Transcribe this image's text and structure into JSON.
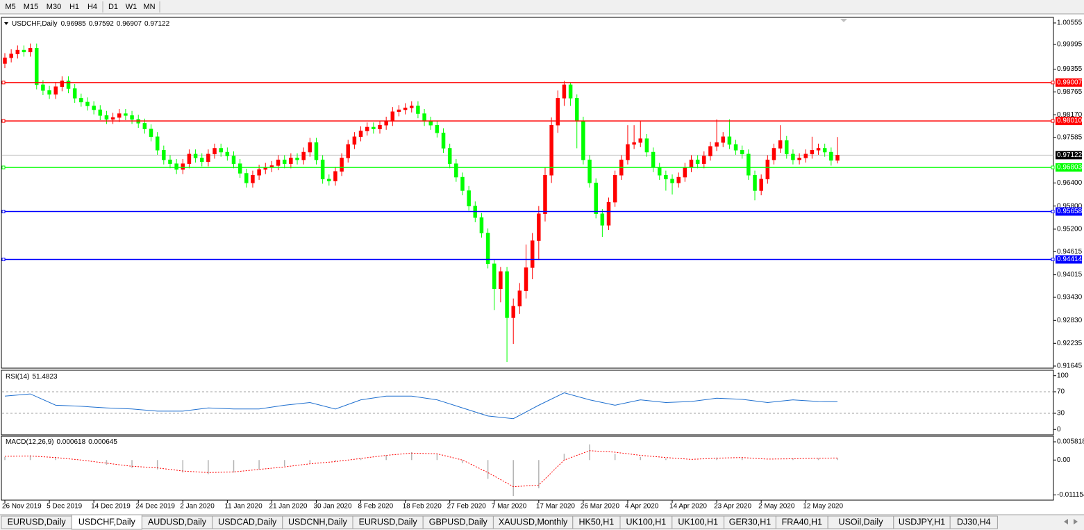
{
  "toolbar": {
    "timeframes": [
      "M5",
      "M15",
      "M30",
      "H1",
      "H4",
      "D1",
      "W1",
      "MN"
    ]
  },
  "chart_data": [
    {
      "type": "candlestick",
      "title": "USDCHF,Daily",
      "up_color": "#ff0000",
      "down_color": "#00ff00",
      "categories": [
        "26 Nov 2019",
        null,
        null,
        null,
        null,
        null,
        null,
        "5 Dec 2019",
        null,
        null,
        null,
        null,
        null,
        null,
        "14 Dec 2019",
        null,
        null,
        null,
        null,
        null,
        null,
        "24 Dec 2019",
        null,
        null,
        null,
        null,
        null,
        null,
        "2 Jan 2020",
        null,
        null,
        null,
        null,
        null,
        null,
        "11 Jan 2020",
        null,
        null,
        null,
        null,
        null,
        null,
        "21 Jan 2020",
        null,
        null,
        null,
        null,
        null,
        null,
        "30 Jan 2020",
        null,
        null,
        null,
        null,
        null,
        null,
        "8 Feb 2020",
        null,
        null,
        null,
        null,
        null,
        null,
        "18 Feb 2020",
        null,
        null,
        null,
        null,
        null,
        null,
        "27 Feb 2020",
        null,
        null,
        null,
        null,
        null,
        null,
        "7 Mar 2020",
        null,
        null,
        null,
        null,
        null,
        null,
        "17 Mar 2020",
        null,
        null,
        null,
        null,
        null,
        null,
        "26 Mar 2020",
        null,
        null,
        null,
        null,
        null,
        null,
        "4 Apr 2020",
        null,
        null,
        null,
        null,
        null,
        null,
        "14 Apr 2020",
        null,
        null,
        null,
        null,
        null,
        null,
        "23 Apr 2020",
        null,
        null,
        null,
        null,
        null,
        null,
        "2 May 2020",
        null,
        null,
        null,
        null,
        null,
        null,
        "12 May 2020",
        null,
        null,
        null,
        null,
        null
      ],
      "open": [
        0.995,
        0.9965,
        0.9975,
        0.9985,
        0.998,
        0.999,
        0.9895,
        0.988,
        0.987,
        0.989,
        0.9905,
        0.9885,
        0.986,
        0.985,
        0.984,
        0.983,
        0.9815,
        0.9805,
        0.981,
        0.982,
        0.9815,
        0.9805,
        0.9795,
        0.978,
        0.976,
        0.9725,
        0.97,
        0.969,
        0.9675,
        0.969,
        0.9715,
        0.9705,
        0.9695,
        0.9715,
        0.973,
        0.972,
        0.971,
        0.969,
        0.9665,
        0.964,
        0.966,
        0.9675,
        0.968,
        0.9685,
        0.97,
        0.969,
        0.9705,
        0.97,
        0.972,
        0.9745,
        0.97,
        0.965,
        0.9645,
        0.967,
        0.9705,
        0.974,
        0.976,
        0.9775,
        0.9785,
        0.978,
        0.979,
        0.98,
        0.9825,
        0.983,
        0.9835,
        0.984,
        0.982,
        0.98,
        0.979,
        0.977,
        0.973,
        0.969,
        0.9655,
        0.962,
        0.958,
        0.955,
        0.951,
        0.943,
        0.9365,
        0.941,
        0.929,
        0.932,
        0.936,
        0.942,
        0.949,
        0.956,
        0.966,
        0.979,
        0.986,
        0.9895,
        0.986,
        0.98,
        0.97,
        0.964,
        0.956,
        0.953,
        0.959,
        0.966,
        0.97,
        0.974,
        0.9745,
        0.9755,
        0.972,
        0.968,
        0.966,
        0.965,
        0.964,
        0.9655,
        0.968,
        0.97,
        0.969,
        0.971,
        0.9735,
        0.9745,
        0.976,
        0.974,
        0.9725,
        0.9715,
        0.966,
        0.962,
        0.965,
        0.97,
        0.973,
        0.975,
        0.9715,
        0.97,
        0.9705,
        0.9715,
        0.9725,
        0.973,
        0.972,
        0.96985
      ],
      "high": [
        0.9977,
        0.9987,
        0.9997,
        0.9997,
        1.0002,
        1.0002,
        0.9907,
        0.9892,
        0.9902,
        0.9917,
        0.9917,
        0.9897,
        0.9872,
        0.9862,
        0.9852,
        0.9842,
        0.9827,
        0.9822,
        0.9832,
        0.9832,
        0.9827,
        0.9817,
        0.9807,
        0.9792,
        0.9772,
        0.9737,
        0.9712,
        0.9702,
        0.9702,
        0.9727,
        0.9727,
        0.9717,
        0.9727,
        0.9742,
        0.9742,
        0.9732,
        0.9722,
        0.9702,
        0.9677,
        0.9672,
        0.9687,
        0.9692,
        0.9697,
        0.9712,
        0.9712,
        0.9717,
        0.9717,
        0.9732,
        0.9757,
        0.9757,
        0.9712,
        0.9662,
        0.9682,
        0.9717,
        0.9752,
        0.9772,
        0.9787,
        0.9797,
        0.9797,
        0.9802,
        0.9812,
        0.9837,
        0.9842,
        0.9847,
        0.9852,
        0.9852,
        0.9832,
        0.9812,
        0.9802,
        0.9782,
        0.9742,
        0.9702,
        0.9667,
        0.9632,
        0.9592,
        0.9562,
        0.9522,
        0.9442,
        0.9422,
        0.9422,
        0.934,
        0.938,
        0.948,
        0.951,
        0.958,
        0.968,
        0.981,
        0.988,
        0.9905,
        0.99,
        0.987,
        0.9812,
        0.9712,
        0.9652,
        0.9572,
        0.9602,
        0.9672,
        0.9712,
        0.979,
        0.979,
        0.98,
        0.9767,
        0.9732,
        0.9692,
        0.9672,
        0.9662,
        0.9667,
        0.9692,
        0.9712,
        0.9712,
        0.9722,
        0.9747,
        0.9805,
        0.9772,
        0.9805,
        0.9752,
        0.9737,
        0.9727,
        0.9672,
        0.9662,
        0.9712,
        0.9742,
        0.979,
        0.9762,
        0.9727,
        0.9717,
        0.9727,
        0.976,
        0.9742,
        0.9742,
        0.9732,
        0.97592
      ],
      "low": [
        0.9938,
        0.9953,
        0.9963,
        0.9968,
        0.9968,
        0.9883,
        0.9868,
        0.9858,
        0.9858,
        0.9878,
        0.9873,
        0.9848,
        0.9838,
        0.9828,
        0.9818,
        0.9803,
        0.9793,
        0.9793,
        0.9798,
        0.9803,
        0.9793,
        0.9783,
        0.9768,
        0.9748,
        0.9713,
        0.9688,
        0.9678,
        0.9663,
        0.9663,
        0.9678,
        0.9693,
        0.9683,
        0.9683,
        0.9703,
        0.9708,
        0.9698,
        0.9678,
        0.9653,
        0.9628,
        0.9628,
        0.9648,
        0.9663,
        0.9668,
        0.9673,
        0.9678,
        0.9678,
        0.9688,
        0.9688,
        0.9708,
        0.9688,
        0.9638,
        0.9633,
        0.9633,
        0.9658,
        0.9693,
        0.9728,
        0.9748,
        0.9763,
        0.9768,
        0.9768,
        0.9778,
        0.9788,
        0.9813,
        0.9818,
        0.9823,
        0.9808,
        0.9788,
        0.9778,
        0.9758,
        0.9718,
        0.9678,
        0.9643,
        0.9608,
        0.9568,
        0.9538,
        0.9498,
        0.9418,
        0.931,
        0.933,
        0.9175,
        0.9222,
        0.93,
        0.934,
        0.939,
        0.944,
        0.954,
        0.964,
        0.977,
        0.984,
        0.984,
        0.973,
        0.9688,
        0.9628,
        0.9548,
        0.95,
        0.9518,
        0.9578,
        0.9648,
        0.9688,
        0.9728,
        0.9733,
        0.9708,
        0.9668,
        0.9648,
        0.962,
        0.961,
        0.9628,
        0.9643,
        0.9668,
        0.9678,
        0.9678,
        0.9698,
        0.9723,
        0.9733,
        0.9728,
        0.9713,
        0.9703,
        0.9648,
        0.9595,
        0.9608,
        0.9638,
        0.9688,
        0.9718,
        0.9703,
        0.9688,
        0.9688,
        0.9693,
        0.9703,
        0.9713,
        0.9708,
        0.9685,
        0.96907
      ],
      "close": [
        0.9965,
        0.9975,
        0.9985,
        0.998,
        0.999,
        0.9895,
        0.988,
        0.987,
        0.989,
        0.9905,
        0.9885,
        0.986,
        0.985,
        0.984,
        0.983,
        0.9815,
        0.9805,
        0.981,
        0.982,
        0.9815,
        0.9805,
        0.9795,
        0.978,
        0.976,
        0.9725,
        0.97,
        0.969,
        0.9675,
        0.969,
        0.9715,
        0.9705,
        0.9695,
        0.9715,
        0.973,
        0.972,
        0.971,
        0.969,
        0.9665,
        0.964,
        0.966,
        0.9675,
        0.968,
        0.9685,
        0.97,
        0.969,
        0.9705,
        0.97,
        0.972,
        0.9745,
        0.97,
        0.965,
        0.9645,
        0.967,
        0.9705,
        0.974,
        0.976,
        0.9775,
        0.9785,
        0.978,
        0.979,
        0.98,
        0.9825,
        0.983,
        0.9835,
        0.984,
        0.982,
        0.98,
        0.979,
        0.977,
        0.973,
        0.969,
        0.9655,
        0.962,
        0.958,
        0.955,
        0.951,
        0.943,
        0.9365,
        0.941,
        0.929,
        0.932,
        0.936,
        0.942,
        0.949,
        0.956,
        0.966,
        0.979,
        0.986,
        0.9895,
        0.986,
        0.98,
        0.97,
        0.964,
        0.956,
        0.953,
        0.959,
        0.966,
        0.97,
        0.974,
        0.9745,
        0.9755,
        0.972,
        0.968,
        0.966,
        0.965,
        0.964,
        0.9655,
        0.968,
        0.97,
        0.969,
        0.971,
        0.9735,
        0.9745,
        0.976,
        0.974,
        0.9725,
        0.9715,
        0.966,
        0.962,
        0.965,
        0.97,
        0.973,
        0.975,
        0.9715,
        0.97,
        0.9705,
        0.9715,
        0.9725,
        0.973,
        0.972,
        0.96985,
        0.97122
      ],
      "ylim": [
        0.91591,
        1.00663
      ],
      "yticks": [
        1.00555,
        0.99995,
        0.99355,
        0.98765,
        {
          "value": 0.9817,
          "label": "0.98170"
        },
        0.97585,
        {
          "value": 0.964,
          "label": "0.96400"
        },
        {
          "value": 0.958,
          "label": "0.95800"
        },
        {
          "value": 0.952,
          "label": "0.95200"
        },
        0.94615,
        0.94015,
        {
          "value": 0.9343,
          "label": "0.93430"
        },
        {
          "value": 0.9283,
          "label": "0.92830"
        },
        0.92235,
        0.91645
      ],
      "levels": [
        {
          "price": 0.99007,
          "color": "#ff0000"
        },
        {
          "price": 0.9801,
          "label": "0.98010",
          "color": "#ff0000"
        },
        {
          "price": 0.96803,
          "color": "#00ff00"
        },
        {
          "price": 0.95658,
          "color": "#0000ff"
        },
        {
          "price": 0.94414,
          "color": "#0000ff"
        }
      ]
    },
    {
      "type": "line",
      "title": "RSI(14)",
      "color": "#1e6fcf",
      "x": [
        0,
        4,
        8,
        12,
        16,
        20,
        24,
        28,
        32,
        36,
        40,
        44,
        48,
        52,
        56,
        60,
        64,
        68,
        72,
        76,
        80,
        84,
        88,
        92,
        96,
        100,
        104,
        108,
        112,
        116,
        120,
        124,
        128,
        131
      ],
      "values": [
        62,
        66,
        45,
        43,
        40,
        38,
        34,
        34,
        40,
        38,
        38,
        45,
        50,
        38,
        55,
        62,
        62,
        55,
        40,
        25,
        20,
        45,
        68,
        55,
        45,
        55,
        50,
        52,
        58,
        56,
        50,
        55,
        52,
        51.4823
      ],
      "ylim": [
        -10,
        110
      ],
      "yticks": [
        100,
        70,
        30,
        0
      ],
      "levels": [
        70,
        30
      ]
    },
    {
      "type": "macd",
      "title": "MACD(12,26,9)",
      "x": [
        0,
        4,
        8,
        12,
        16,
        20,
        24,
        28,
        32,
        36,
        40,
        44,
        48,
        52,
        56,
        60,
        64,
        68,
        72,
        76,
        80,
        84,
        88,
        92,
        96,
        100,
        104,
        108,
        112,
        116,
        120,
        124,
        128,
        131
      ],
      "series": [
        {
          "style": "histogram",
          "color": "#b4b4b4",
          "values": [
            0.001,
            0.0015,
            0.001,
            0,
            -0.0015,
            -0.0025,
            -0.003,
            -0.004,
            -0.0045,
            -0.004,
            -0.003,
            -0.002,
            -0.001,
            -0.0005,
            0.0005,
            0.0015,
            0.0025,
            0.002,
            -0.001,
            -0.006,
            -0.0115,
            -0.009,
            0.002,
            0.005,
            0.002,
            0.001,
            0.0005,
            0,
            0.0008,
            0.0008,
            0,
            0.0005,
            0.0006,
            0.000618
          ]
        },
        {
          "style": "dotted",
          "color": "#ff0000",
          "values": [
            0.0012,
            0.0013,
            0.0008,
            0,
            -0.001,
            -0.002,
            -0.0025,
            -0.0035,
            -0.004,
            -0.0038,
            -0.003,
            -0.0022,
            -0.0012,
            -0.0005,
            0.0005,
            0.0015,
            0.0022,
            0.002,
            0,
            -0.004,
            -0.0085,
            -0.008,
            0,
            0.003,
            0.0025,
            0.0015,
            0.0008,
            0.0002,
            0.0006,
            0.0008,
            0.0003,
            0.0004,
            0.0006,
            0.000645
          ]
        }
      ],
      "ylim": [
        -0.0128,
        0.0076
      ],
      "yticks": [
        0.005818,
        {
          "value": 0,
          "label": "0.00"
        },
        -0.011154
      ]
    }
  ],
  "tabs": {
    "items": [
      "EURUSD,Daily",
      "USDCHF,Daily",
      "AUDUSD,Daily",
      "USDCAD,Daily",
      "USDCNH,Daily",
      "EURUSD,Daily",
      "GBPUSD,Daily",
      "XAUUSD,Monthly",
      "HK50,H1",
      "UK100,H1",
      "UK100,H1",
      "GER30,H1",
      "FRA40,H1",
      "USOil,Daily",
      "USDJPY,H1",
      "DJ30,H4"
    ],
    "active": 1
  }
}
